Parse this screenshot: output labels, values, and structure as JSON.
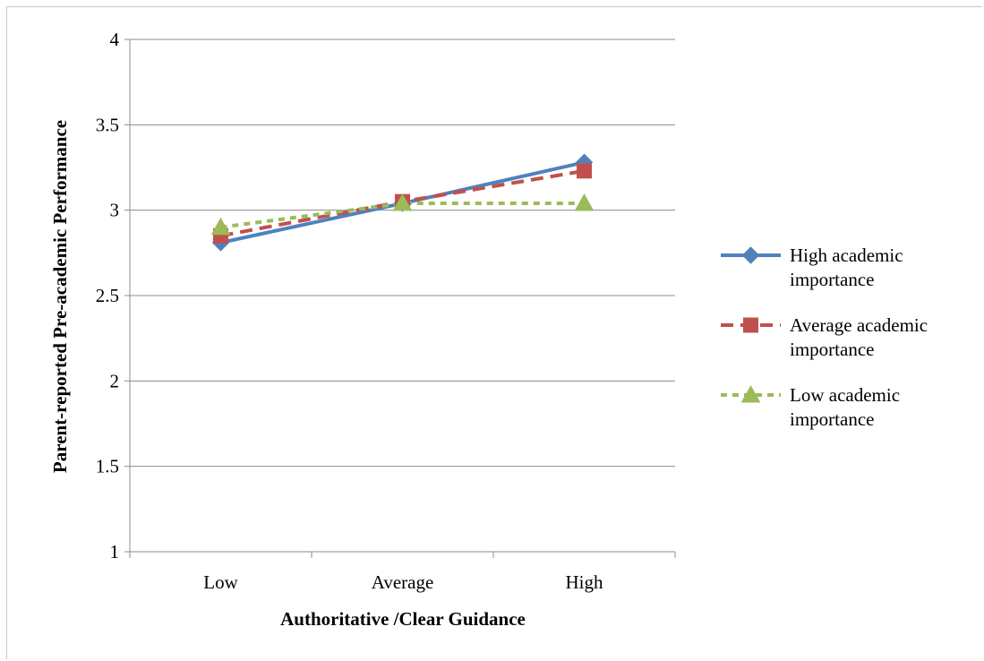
{
  "chart_data": {
    "type": "line",
    "categories": [
      "Low",
      "Average",
      "High"
    ],
    "xlabel": "Authoritative /Clear Guidance",
    "ylabel": "Parent-reported Pre-academic Performance",
    "ylim": [
      1,
      4
    ],
    "yticks": [
      "1",
      "1.5",
      "2",
      "2.5",
      "3",
      "3.5",
      "4"
    ],
    "ytick_values": [
      1,
      1.5,
      2,
      2.5,
      3,
      3.5,
      4
    ],
    "grid": "horizontal",
    "legend_position": "right",
    "series": [
      {
        "name": "High academic importance",
        "legend_lines": [
          "High academic",
          "importance"
        ],
        "values": [
          2.81,
          3.04,
          3.28
        ],
        "color": "#4f81bd",
        "marker": "diamond",
        "dash": "solid"
      },
      {
        "name": "Average academic importance",
        "legend_lines": [
          "Average academic",
          "importance"
        ],
        "values": [
          2.85,
          3.05,
          3.23
        ],
        "color": "#c0504d",
        "marker": "square",
        "dash": "dashed"
      },
      {
        "name": "Low academic importance",
        "legend_lines": [
          "Low academic",
          "importance"
        ],
        "values": [
          2.9,
          3.04,
          3.04
        ],
        "color": "#9bbb59",
        "marker": "triangle",
        "dash": "dotted"
      }
    ]
  }
}
